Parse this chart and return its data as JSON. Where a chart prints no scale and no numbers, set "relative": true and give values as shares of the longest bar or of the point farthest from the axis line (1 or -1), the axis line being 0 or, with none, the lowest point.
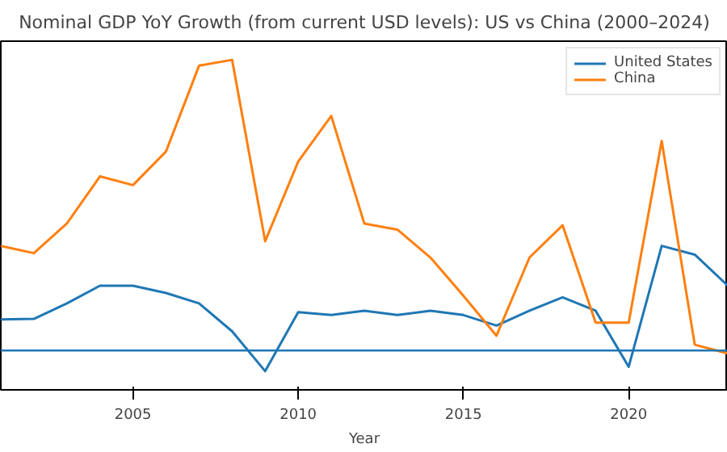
{
  "chart_data": {
    "type": "line",
    "title": "Nominal GDP YoY Growth (from current USD levels): US vs China (2000–2024)",
    "xlabel": "Year",
    "relative": true,
    "x": [
      2001,
      2002,
      2003,
      2004,
      2005,
      2006,
      2007,
      2008,
      2009,
      2010,
      2011,
      2012,
      2013,
      2014,
      2015,
      2016,
      2017,
      2018,
      2019,
      2020,
      2021,
      2022,
      2023
    ],
    "xlim": [
      2001,
      2023
    ],
    "xticks": [
      2005,
      2010,
      2015,
      2020
    ],
    "series": [
      {
        "name": "United States",
        "color": "#1f77b4",
        "values": [
          0.107,
          0.109,
          0.162,
          0.223,
          0.223,
          0.198,
          0.162,
          0.066,
          -0.071,
          0.132,
          0.122,
          0.137,
          0.122,
          0.137,
          0.122,
          0.086,
          0.137,
          0.183,
          0.137,
          -0.056,
          0.36,
          0.33,
          0.223
        ]
      },
      {
        "name": "China",
        "color": "#ff7f0e",
        "values": [
          0.36,
          0.335,
          0.437,
          0.599,
          0.569,
          0.685,
          0.98,
          1,
          0.376,
          0.65,
          0.807,
          0.437,
          0.416,
          0.32,
          0.188,
          0.051,
          0.32,
          0.431,
          0.096,
          0.096,
          0.721,
          0.02,
          -0.01
        ]
      }
    ],
    "ref_lines": [
      {
        "axis": "y",
        "value": 0,
        "color": "#1f77b4"
      }
    ],
    "legend": "top right",
    "grid": false,
    "line_style": "solid",
    "marker": "none"
  }
}
